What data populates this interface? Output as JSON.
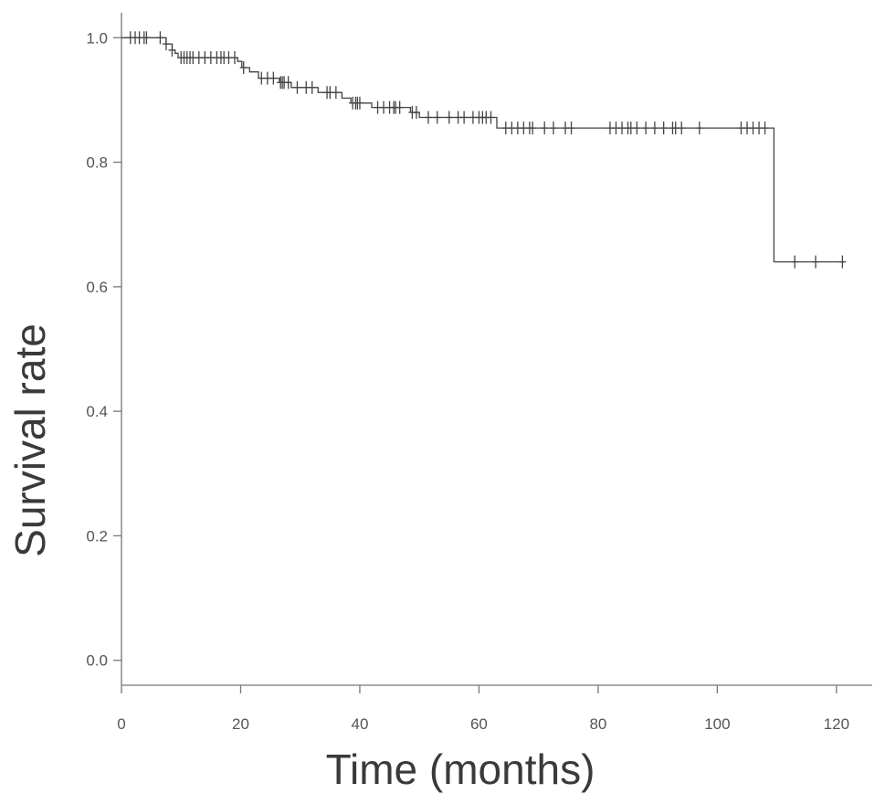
{
  "chart_data": {
    "type": "line",
    "subtype": "kaplan-meier",
    "title": "",
    "xlabel": "Time (months)",
    "ylabel": "Survival rate",
    "xlim": [
      0,
      126
    ],
    "ylim": [
      -0.04,
      1.04
    ],
    "xticks": [
      0,
      20,
      40,
      60,
      80,
      100,
      120
    ],
    "yticks": [
      0.0,
      0.2,
      0.4,
      0.6,
      0.8,
      1.0
    ],
    "ytick_labels": [
      "0.0",
      "0.2",
      "0.4",
      "0.6",
      "0.8",
      "1.0"
    ],
    "xtick_labels": [
      "0",
      "20",
      "40",
      "60",
      "80",
      "100",
      "120"
    ],
    "grid": false,
    "line_color": "#444444",
    "series": [
      {
        "steps": [
          [
            0,
            1.0
          ],
          [
            7.5,
            0.99
          ],
          [
            8.5,
            0.98
          ],
          [
            9,
            0.975
          ],
          [
            9.5,
            0.968
          ],
          [
            19.5,
            0.962
          ],
          [
            20.2,
            0.952
          ],
          [
            21.5,
            0.945
          ],
          [
            23,
            0.935
          ],
          [
            26.5,
            0.928
          ],
          [
            28.5,
            0.92
          ],
          [
            33,
            0.912
          ],
          [
            37,
            0.903
          ],
          [
            38.5,
            0.895
          ],
          [
            42,
            0.888
          ],
          [
            48.5,
            0.88
          ],
          [
            50,
            0.872
          ],
          [
            63,
            0.855
          ],
          [
            109.5,
            0.64
          ],
          [
            121.5,
            0.64
          ]
        ],
        "censored": [
          [
            1.5,
            1.0
          ],
          [
            2.3,
            1.0
          ],
          [
            3,
            1.0
          ],
          [
            3.8,
            1.0
          ],
          [
            4.2,
            1.0
          ],
          [
            6.5,
            1.0
          ],
          [
            7.5,
            0.99
          ],
          [
            8.5,
            0.98
          ],
          [
            10,
            0.968
          ],
          [
            10.5,
            0.968
          ],
          [
            11,
            0.968
          ],
          [
            11.5,
            0.968
          ],
          [
            12,
            0.968
          ],
          [
            13,
            0.968
          ],
          [
            14,
            0.968
          ],
          [
            15,
            0.968
          ],
          [
            16,
            0.968
          ],
          [
            16.7,
            0.968
          ],
          [
            17.2,
            0.968
          ],
          [
            18,
            0.968
          ],
          [
            19,
            0.968
          ],
          [
            20.5,
            0.952
          ],
          [
            23.5,
            0.935
          ],
          [
            24.5,
            0.935
          ],
          [
            25.5,
            0.935
          ],
          [
            26.7,
            0.928
          ],
          [
            27,
            0.928
          ],
          [
            27.3,
            0.928
          ],
          [
            28,
            0.928
          ],
          [
            29.5,
            0.92
          ],
          [
            31,
            0.92
          ],
          [
            32,
            0.92
          ],
          [
            34.5,
            0.912
          ],
          [
            35,
            0.912
          ],
          [
            36,
            0.912
          ],
          [
            38.8,
            0.895
          ],
          [
            39.3,
            0.895
          ],
          [
            39.6,
            0.895
          ],
          [
            40,
            0.895
          ],
          [
            43,
            0.888
          ],
          [
            44,
            0.888
          ],
          [
            45,
            0.888
          ],
          [
            45.7,
            0.888
          ],
          [
            46,
            0.888
          ],
          [
            46.7,
            0.888
          ],
          [
            48.8,
            0.88
          ],
          [
            49.5,
            0.88
          ],
          [
            51.5,
            0.872
          ],
          [
            53,
            0.872
          ],
          [
            55,
            0.872
          ],
          [
            56.5,
            0.872
          ],
          [
            57.5,
            0.872
          ],
          [
            59,
            0.872
          ],
          [
            60,
            0.872
          ],
          [
            60.6,
            0.872
          ],
          [
            61.2,
            0.872
          ],
          [
            62,
            0.872
          ],
          [
            64.5,
            0.855
          ],
          [
            65.5,
            0.855
          ],
          [
            66.5,
            0.855
          ],
          [
            67.5,
            0.855
          ],
          [
            68.5,
            0.855
          ],
          [
            69,
            0.855
          ],
          [
            71,
            0.855
          ],
          [
            72.5,
            0.855
          ],
          [
            74.5,
            0.855
          ],
          [
            75.5,
            0.855
          ],
          [
            82,
            0.855
          ],
          [
            83,
            0.855
          ],
          [
            84,
            0.855
          ],
          [
            85,
            0.855
          ],
          [
            85.5,
            0.855
          ],
          [
            86.5,
            0.855
          ],
          [
            88,
            0.855
          ],
          [
            89.5,
            0.855
          ],
          [
            91,
            0.855
          ],
          [
            92.5,
            0.855
          ],
          [
            93,
            0.855
          ],
          [
            94,
            0.855
          ],
          [
            97,
            0.855
          ],
          [
            104,
            0.855
          ],
          [
            105,
            0.855
          ],
          [
            106,
            0.855
          ],
          [
            107,
            0.855
          ],
          [
            108,
            0.855
          ],
          [
            113,
            0.64
          ],
          [
            116.5,
            0.64
          ],
          [
            121,
            0.64
          ]
        ]
      }
    ]
  }
}
